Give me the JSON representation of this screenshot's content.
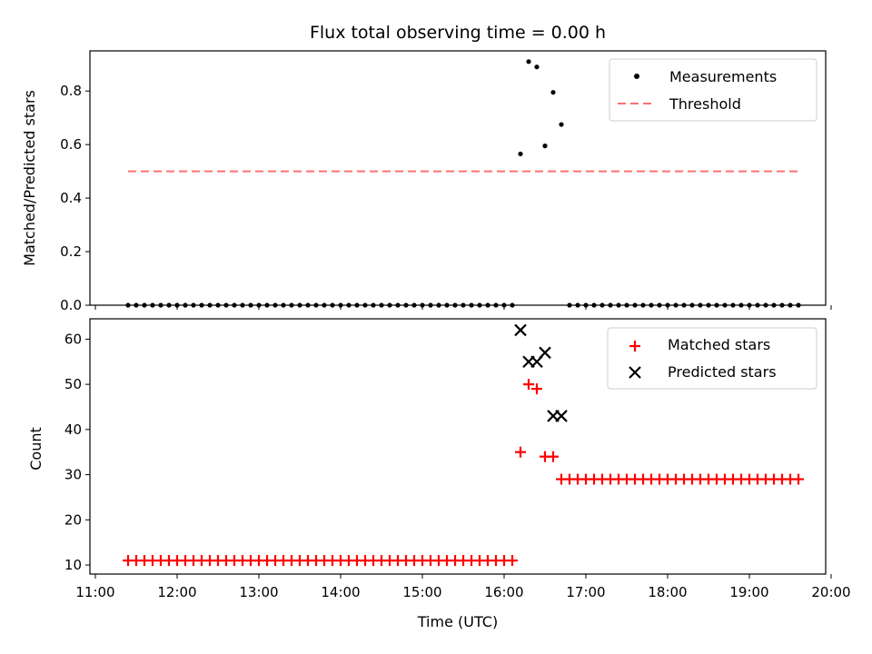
{
  "chart_data": [
    {
      "type": "scatter",
      "title": "Flux total observing time = 0.00 h",
      "ylabel": "Matched/Predicted stars",
      "xlabel": "",
      "xlim": [
        "11:00",
        "20:00"
      ],
      "ylim": [
        0,
        0.95
      ],
      "yticks": [
        0.0,
        0.2,
        0.4,
        0.6,
        0.8
      ],
      "ytick_labels": [
        "0.0",
        "0.2",
        "0.4",
        "0.6",
        "0.8"
      ],
      "grid": false,
      "legend": "top-right",
      "series": [
        {
          "name": "Measurements",
          "marker": "dot",
          "color": "#000000",
          "points": [
            [
              "16:12",
              0.565
            ],
            [
              "16:18",
              0.91
            ],
            [
              "16:24",
              0.89
            ],
            [
              "16:30",
              0.595
            ],
            [
              "16:36",
              0.795
            ],
            [
              "16:42",
              0.675
            ]
          ],
          "zero_runs": [
            {
              "from": "11:24",
              "to": "16:06",
              "step_minutes": 6,
              "value": 0.0
            },
            {
              "from": "16:48",
              "to": "19:36",
              "step_minutes": 6,
              "value": 0.0
            }
          ]
        },
        {
          "name": "Threshold",
          "style": "dashed",
          "color": "#ff7070",
          "from": "11:24",
          "to": "19:36",
          "value": 0.5
        }
      ]
    },
    {
      "type": "scatter",
      "xlabel": "Time (UTC)",
      "ylabel": "Count",
      "xlim": [
        "11:00",
        "20:00"
      ],
      "ylim": [
        8,
        64.5
      ],
      "yticks": [
        10,
        20,
        30,
        40,
        50,
        60
      ],
      "ytick_labels": [
        "10",
        "20",
        "30",
        "40",
        "50",
        "60"
      ],
      "xticks": [
        "11:00",
        "12:00",
        "13:00",
        "14:00",
        "15:00",
        "16:00",
        "17:00",
        "18:00",
        "19:00",
        "20:00"
      ],
      "grid": false,
      "legend": "top-right",
      "series": [
        {
          "name": "Matched stars",
          "marker": "plus",
          "color": "#ff0000",
          "points": [
            [
              "16:12",
              35
            ],
            [
              "16:18",
              50
            ],
            [
              "16:24",
              49
            ],
            [
              "16:30",
              34
            ],
            [
              "16:36",
              34
            ]
          ],
          "runs": [
            {
              "from": "11:24",
              "to": "16:06",
              "step_minutes": 6,
              "value": 11
            },
            {
              "from": "16:42",
              "to": "19:36",
              "step_minutes": 6,
              "value": 29
            }
          ]
        },
        {
          "name": "Predicted stars",
          "marker": "x",
          "color": "#000000",
          "points": [
            [
              "16:12",
              62
            ],
            [
              "16:18",
              55
            ],
            [
              "16:24",
              55
            ],
            [
              "16:30",
              57
            ],
            [
              "16:36",
              43
            ],
            [
              "16:42",
              43
            ]
          ]
        }
      ]
    }
  ]
}
